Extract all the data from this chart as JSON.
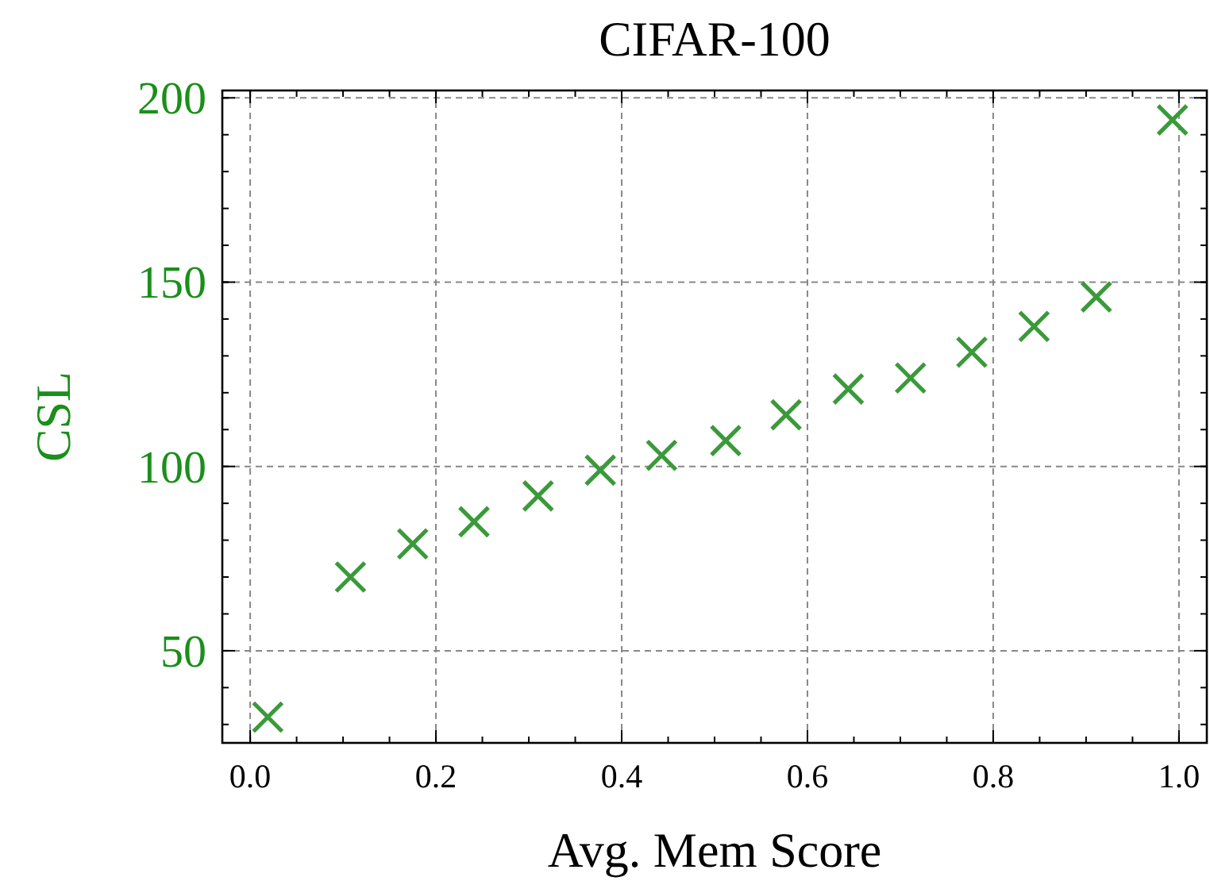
{
  "chart_data": {
    "type": "scatter",
    "title": "CIFAR-100",
    "xlabel": "Avg. Mem Score",
    "ylabel": "CSL",
    "marker": "cross",
    "grid": true,
    "xlim": [
      -0.03,
      1.03
    ],
    "ylim": [
      25,
      202
    ],
    "xticks": [
      {
        "value": 0,
        "label": "0.0"
      },
      {
        "value": 0.2,
        "label": "0.2"
      },
      {
        "value": 0.4,
        "label": "0.4"
      },
      {
        "value": 0.6,
        "label": "0.6"
      },
      {
        "value": 0.8,
        "label": "0.8"
      },
      {
        "value": 1,
        "label": "1.0"
      }
    ],
    "yticks": [
      50,
      100,
      150,
      200
    ],
    "series": [
      {
        "color": "#3a9a3a",
        "x": [
          0.019,
          0.108,
          0.175,
          0.241,
          0.31,
          0.377,
          0.443,
          0.512,
          0.577,
          0.644,
          0.711,
          0.777,
          0.844,
          0.911,
          0.993
        ],
        "values": [
          32,
          70,
          79,
          85,
          92,
          99,
          103,
          107,
          114,
          121,
          124,
          131,
          138,
          146,
          194
        ]
      }
    ]
  }
}
